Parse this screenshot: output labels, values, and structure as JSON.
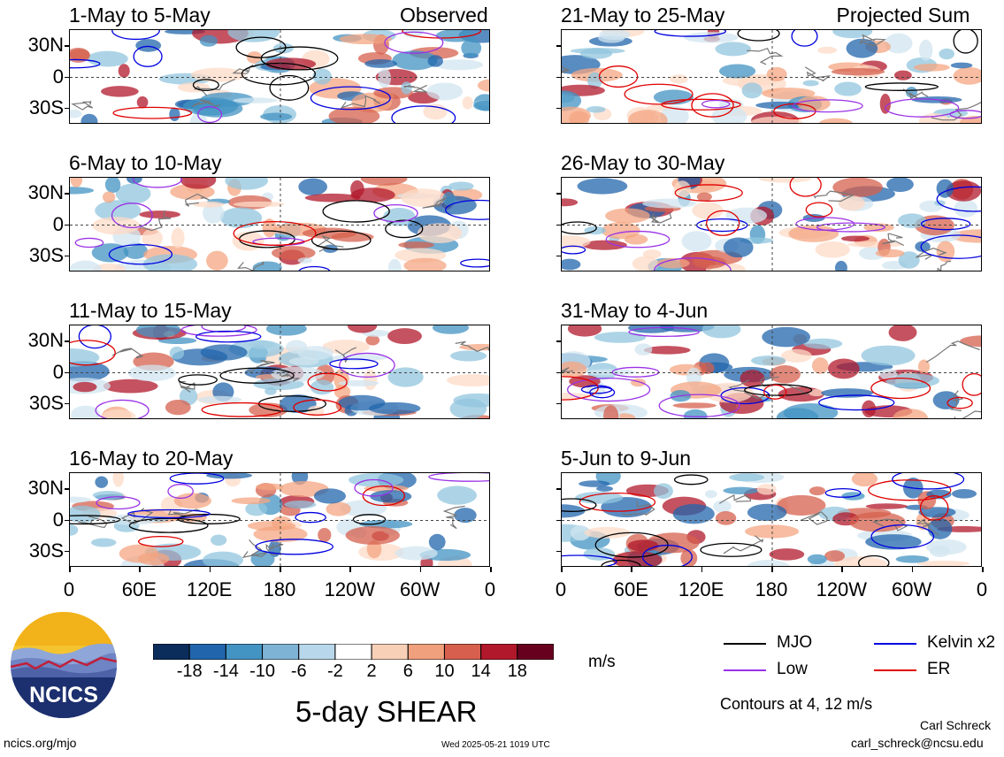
{
  "chart_data": {
    "type": "heatmap",
    "title": "5-day SHEAR",
    "units": "m/s",
    "left_column_label": "Observed",
    "right_column_label": "Projected Sum",
    "panels": [
      {
        "label": "1-May to 5-May",
        "column": "Observed"
      },
      {
        "label": "6-May to 10-May",
        "column": "Observed"
      },
      {
        "label": "11-May to 15-May",
        "column": "Observed"
      },
      {
        "label": "16-May to 20-May",
        "column": "Observed"
      },
      {
        "label": "21-May to 25-May",
        "column": "Projected Sum"
      },
      {
        "label": "26-May to 30-May",
        "column": "Projected Sum"
      },
      {
        "label": "31-May to 4-Jun",
        "column": "Projected Sum"
      },
      {
        "label": "5-Jun to 9-Jun",
        "column": "Projected Sum"
      }
    ],
    "lat_ticks": [
      "30N",
      "0",
      "30S"
    ],
    "lon_ticks": [
      "0",
      "60E",
      "120E",
      "180",
      "120W",
      "60W",
      "0"
    ],
    "colorbar": {
      "tick_labels": [
        "-18",
        "-14",
        "-10",
        "-6",
        "-2",
        "2",
        "6",
        "10",
        "14",
        "18"
      ],
      "colors": [
        "#0b2d5b",
        "#2166ac",
        "#4393c3",
        "#7fb3d6",
        "#b9d7ea",
        "#ffffff",
        "#f8d0b8",
        "#f0a07c",
        "#d6604d",
        "#b2182b",
        "#67001f"
      ]
    },
    "contour_legend": [
      {
        "label": "MJO",
        "color": "#000000"
      },
      {
        "label": "Kelvin x2",
        "color": "#0000e0"
      },
      {
        "label": "Low",
        "color": "#9a32e6"
      },
      {
        "label": "ER",
        "color": "#e00000"
      }
    ],
    "contour_note": "Contours at 4, 12 m/s"
  },
  "footer": {
    "logo_text": "NCICS",
    "url": "ncics.org/mjo",
    "timestamp": "Wed 2025-05-21 1019 UTC",
    "author": "Carl Schreck",
    "email": "carl_schreck@ncsu.edu"
  }
}
